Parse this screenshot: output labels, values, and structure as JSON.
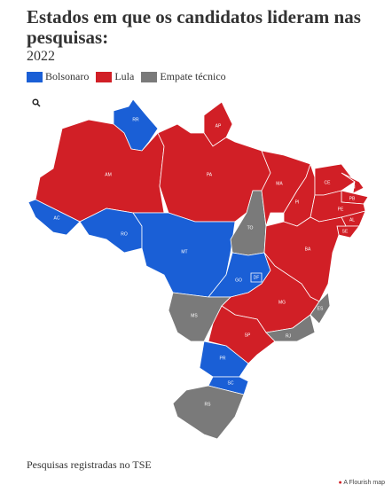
{
  "title": "Estados em que os candidatos lideram nas pesquisas:",
  "subtitle": "2022",
  "legend": [
    {
      "label": "Bolsonaro",
      "color": "#1a5fd6"
    },
    {
      "label": "Lula",
      "color": "#d11f26"
    },
    {
      "label": "Empate técnico",
      "color": "#7a7a7a"
    }
  ],
  "states": [
    {
      "label": "RR",
      "group": 0
    },
    {
      "label": "AP",
      "group": 1
    },
    {
      "label": "AM",
      "group": 1
    },
    {
      "label": "PA",
      "group": 1
    },
    {
      "label": "AC",
      "group": 0
    },
    {
      "label": "RO",
      "group": 0
    },
    {
      "label": "MT",
      "group": 0
    },
    {
      "label": "TO",
      "group": 2
    },
    {
      "label": "MA",
      "group": 1
    },
    {
      "label": "PI",
      "group": 1
    },
    {
      "label": "CE",
      "group": 1
    },
    {
      "label": "RN",
      "group": 1
    },
    {
      "label": "PB",
      "group": 1
    },
    {
      "label": "PE",
      "group": 1
    },
    {
      "label": "AL",
      "group": 1
    },
    {
      "label": "SE",
      "group": 1
    },
    {
      "label": "BA",
      "group": 1
    },
    {
      "label": "GO",
      "group": 0
    },
    {
      "label": "DF",
      "group": 0
    },
    {
      "label": "MG",
      "group": 1
    },
    {
      "label": "ES",
      "group": 2
    },
    {
      "label": "MS",
      "group": 2
    },
    {
      "label": "SP",
      "group": 1
    },
    {
      "label": "RJ",
      "group": 2
    },
    {
      "label": "PR",
      "group": 0
    },
    {
      "label": "SC",
      "group": 0
    },
    {
      "label": "RS",
      "group": 2
    }
  ],
  "footer": "Pesquisas registradas no TSE",
  "credit": "A Flourish map"
}
